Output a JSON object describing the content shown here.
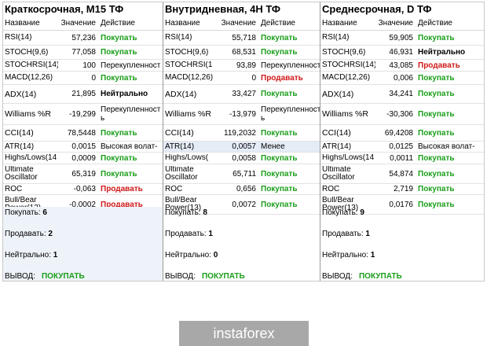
{
  "headers": {
    "name": "Название",
    "value": "Значение",
    "action": "Действие"
  },
  "panels": [
    {
      "title": "Краткосрочная, M15 ТФ",
      "rows": [
        {
          "name": "RSI(14)",
          "value": "57,236",
          "action": "Покупать",
          "type": "buy"
        },
        {
          "name": "STOCH(9,6)",
          "value": "77,058",
          "action": "Покупать",
          "type": "buy"
        },
        {
          "name": "STOCHRSI(14)",
          "value": "100",
          "action": "Перекупленност",
          "type": "other"
        },
        {
          "name": "MACD(12,26)",
          "value": "0",
          "action": "Покупать",
          "type": "buy"
        },
        {
          "name": "ADX(14)",
          "value": "21,895",
          "action": "Нейтрально",
          "type": "neutral"
        },
        {
          "name": "Williams %R",
          "value": "-19,299",
          "action": "Перекупленност ь",
          "type": "other"
        },
        {
          "name": "CCI(14)",
          "value": "78,5448",
          "action": "Покупать",
          "type": "buy"
        },
        {
          "name": "ATR(14)",
          "value": "0,0015",
          "action": "Высокая волат-",
          "type": "other"
        },
        {
          "name": "Highs/Lows(14",
          "value": "0,0009",
          "action": "Покупать",
          "type": "buy"
        },
        {
          "name": "Ultimate Oscillator",
          "value": "65,319",
          "action": "Покупать",
          "type": "buy"
        },
        {
          "name": "ROC",
          "value": "-0,063",
          "action": "Продавать",
          "type": "sell"
        },
        {
          "name": "Bull/Bear Power(13)",
          "value": "-0,0002",
          "action": "Продавать",
          "type": "sell"
        }
      ],
      "summary": {
        "buy_label": "Покупать:",
        "buy": "6",
        "sell_label": "Продавать:",
        "sell": "2",
        "neutral_label": "Нейтрально:",
        "neutral": "1",
        "verdict_label": "ВЫВОД:",
        "verdict": "ПОКУПАТЬ"
      }
    },
    {
      "title": "Внутридневная, 4Н ТФ",
      "rows": [
        {
          "name": "RSI(14)",
          "value": "55,718",
          "action": "Покупать",
          "type": "buy"
        },
        {
          "name": "STOCH(9,6)",
          "value": "68,531",
          "action": "Покупать",
          "type": "buy"
        },
        {
          "name": "STOCHRSI(1",
          "value": "93,89",
          "action": "Перекупленност",
          "type": "other"
        },
        {
          "name": "MACD(12,26)",
          "value": "0",
          "action": "Продавать",
          "type": "sell"
        },
        {
          "name": "ADX(14)",
          "value": "33,427",
          "action": "Покупать",
          "type": "buy"
        },
        {
          "name": "Williams %R",
          "value": "-13,979",
          "action": "Перекупленност ь",
          "type": "other"
        },
        {
          "name": "CCI(14)",
          "value": "119,2032",
          "action": "Покупать",
          "type": "buy"
        },
        {
          "name": "ATR(14)",
          "value": "0,0057",
          "action": "Менее",
          "type": "other"
        },
        {
          "name": "Highs/Lows(",
          "value": "0,0058",
          "action": "Покупать",
          "type": "buy"
        },
        {
          "name": "Ultimate Oscillator",
          "value": "65,711",
          "action": "Покупать",
          "type": "buy"
        },
        {
          "name": "ROC",
          "value": "0,656",
          "action": "Покупать",
          "type": "buy"
        },
        {
          "name": "Bull/Bear Power(13)",
          "value": "0,0072",
          "action": "Покупать",
          "type": "buy"
        }
      ],
      "summary": {
        "buy_label": "Покупать:",
        "buy": "8",
        "sell_label": "Продавать:",
        "sell": "1",
        "neutral_label": "Нейтрально:",
        "neutral": "0",
        "verdict_label": "ВЫВОД:",
        "verdict": "ПОКУПАТЬ"
      }
    },
    {
      "title": "Среднесрочная, D ТФ",
      "rows": [
        {
          "name": "RSI(14)",
          "value": "59,905",
          "action": "Покупать",
          "type": "buy"
        },
        {
          "name": "STOCH(9,6)",
          "value": "46,931",
          "action": "Нейтрально",
          "type": "neutral"
        },
        {
          "name": "STOCHRSI(14)",
          "value": "43,085",
          "action": "Продавать",
          "type": "sell"
        },
        {
          "name": "MACD(12,26)",
          "value": "0,006",
          "action": "Покупать",
          "type": "buy"
        },
        {
          "name": "ADX(14)",
          "value": "34,241",
          "action": "Покупать",
          "type": "buy"
        },
        {
          "name": "Williams %R",
          "value": "-30,306",
          "action": "Покупать",
          "type": "buy"
        },
        {
          "name": "CCI(14)",
          "value": "69,4208",
          "action": "Покупать",
          "type": "buy"
        },
        {
          "name": "ATR(14)",
          "value": "0,0125",
          "action": "Высокая волат-",
          "type": "other"
        },
        {
          "name": "Highs/Lows(14",
          "value": "0,0011",
          "action": "Покупать",
          "type": "buy"
        },
        {
          "name": "Ultimate Oscillator",
          "value": "54,874",
          "action": "Покупать",
          "type": "buy"
        },
        {
          "name": "ROC",
          "value": "2,719",
          "action": "Покупать",
          "type": "buy"
        },
        {
          "name": "Bull/Bear Power(13)",
          "value": "0,0176",
          "action": "Покупать",
          "type": "buy"
        }
      ],
      "summary": {
        "buy_label": "Покупать:",
        "buy": "9",
        "sell_label": "Продавать:",
        "sell": "1",
        "neutral_label": "Нейтрально:",
        "neutral": "1",
        "verdict_label": "ВЫВОД:",
        "verdict": "ПОКУПАТЬ"
      }
    }
  ],
  "logo": {
    "text": "instaforex"
  },
  "colors": {
    "buy": "#1a9e1a",
    "sell": "#d01818",
    "logo_bg": "#a8a8a8"
  }
}
